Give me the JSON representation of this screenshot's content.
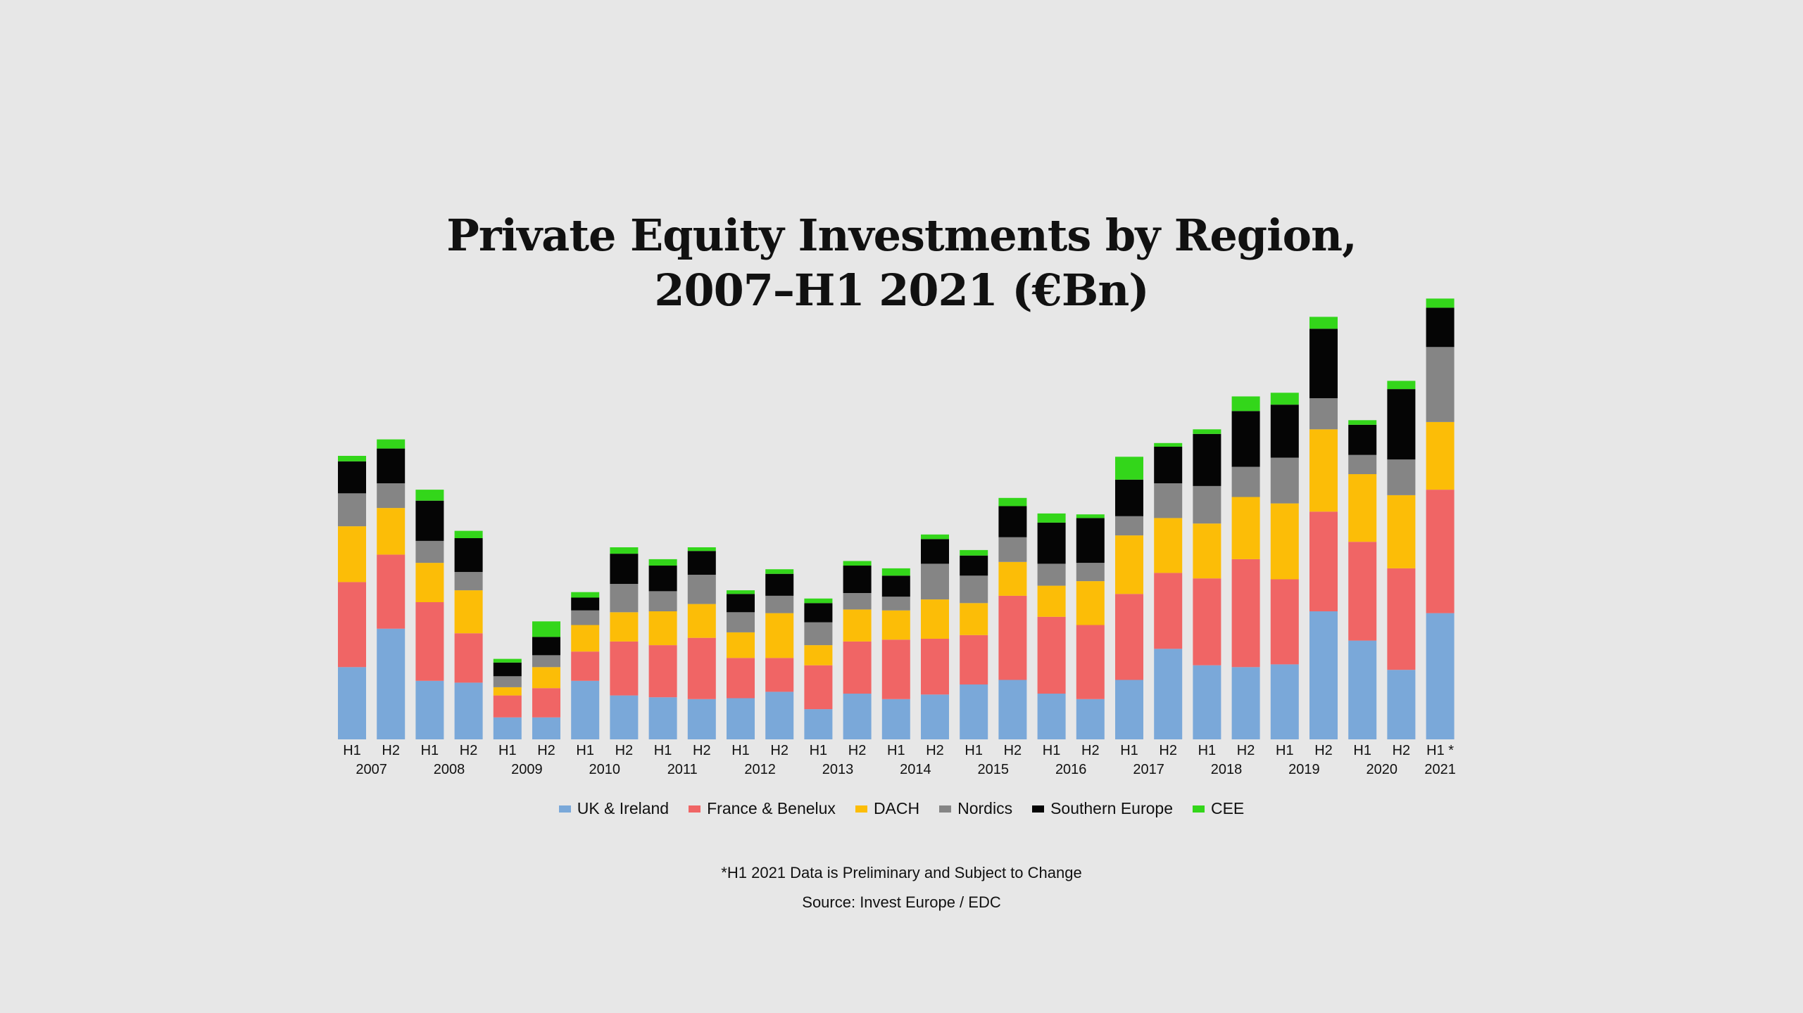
{
  "title_line1": "Private Equity Investments by Region,",
  "title_line2": "2007–H1 2021  (€Bn)",
  "footnote": "*H1 2021 Data is Preliminary and Subject to Change",
  "source": "Source: Invest Europe / EDC",
  "chart_data": {
    "type": "bar",
    "stacked": true,
    "grid": false,
    "legend_position": "bottom",
    "ylim": [
      0,
      48
    ],
    "categories": [
      "H1",
      "H2",
      "H1",
      "H2",
      "H1",
      "H2",
      "H1",
      "H2",
      "H1",
      "H2",
      "H1",
      "H2",
      "H1",
      "H2",
      "H1",
      "H2",
      "H1",
      "H2",
      "H1",
      "H2",
      "H1",
      "H2",
      "H1",
      "H2",
      "H1",
      "H2",
      "H1",
      "H2",
      "H1 *"
    ],
    "years": [
      {
        "label": "2007",
        "from": 0,
        "to": 1
      },
      {
        "label": "2008",
        "from": 2,
        "to": 3
      },
      {
        "label": "2009",
        "from": 4,
        "to": 5
      },
      {
        "label": "2010",
        "from": 6,
        "to": 7
      },
      {
        "label": "2011",
        "from": 8,
        "to": 9
      },
      {
        "label": "2012",
        "from": 10,
        "to": 11
      },
      {
        "label": "2013",
        "from": 12,
        "to": 13
      },
      {
        "label": "2014",
        "from": 14,
        "to": 15
      },
      {
        "label": "2015",
        "from": 16,
        "to": 17
      },
      {
        "label": "2016",
        "from": 18,
        "to": 19
      },
      {
        "label": "2017",
        "from": 20,
        "to": 21
      },
      {
        "label": "2018",
        "from": 22,
        "to": 23
      },
      {
        "label": "2019",
        "from": 24,
        "to": 25
      },
      {
        "label": "2020",
        "from": 26,
        "to": 27
      },
      {
        "label": "2021",
        "from": 28,
        "to": 28
      }
    ],
    "series": [
      {
        "name": "UK & Ireland",
        "color": "#7aa8d9",
        "values": [
          7.9,
          12.1,
          6.4,
          6.2,
          2.4,
          2.4,
          6.4,
          4.8,
          4.6,
          4.4,
          4.5,
          5.2,
          3.3,
          5.0,
          4.4,
          4.9,
          6.0,
          6.5,
          5.0,
          4.4,
          6.5,
          9.9,
          8.1,
          7.9,
          8.2,
          14.0,
          10.8,
          7.6,
          13.8
        ]
      },
      {
        "name": "France & Benelux",
        "color": "#f06565",
        "values": [
          9.3,
          8.1,
          8.6,
          5.4,
          2.4,
          3.2,
          3.2,
          5.9,
          5.7,
          6.7,
          4.4,
          3.7,
          4.8,
          5.7,
          6.5,
          6.1,
          5.4,
          9.2,
          8.4,
          8.1,
          9.4,
          8.3,
          9.5,
          11.8,
          9.3,
          10.9,
          10.8,
          11.1,
          13.5
        ]
      },
      {
        "name": "DACH",
        "color": "#fcbd07",
        "values": [
          6.1,
          5.1,
          4.3,
          4.7,
          0.9,
          2.3,
          2.9,
          3.2,
          3.7,
          3.7,
          2.8,
          4.9,
          2.2,
          3.5,
          3.2,
          4.3,
          3.5,
          3.7,
          3.4,
          4.8,
          6.4,
          6.0,
          6.0,
          6.8,
          8.3,
          9.0,
          7.4,
          8.0,
          7.4
        ]
      },
      {
        "name": "Nordics",
        "color": "#858585",
        "values": [
          3.6,
          2.7,
          2.4,
          2.0,
          1.2,
          1.3,
          1.6,
          3.1,
          2.2,
          3.2,
          2.2,
          1.9,
          2.5,
          1.8,
          1.5,
          3.9,
          3.0,
          2.7,
          2.4,
          2.0,
          2.1,
          3.8,
          4.1,
          3.3,
          5.0,
          3.4,
          2.1,
          3.9,
          8.2
        ]
      },
      {
        "name": "Southern Europe",
        "color": "#050505",
        "values": [
          3.5,
          3.8,
          4.4,
          3.7,
          1.5,
          2.0,
          1.4,
          3.3,
          2.8,
          2.6,
          2.0,
          2.4,
          2.1,
          3.0,
          2.3,
          2.7,
          2.2,
          3.4,
          4.5,
          4.9,
          4.0,
          4.0,
          5.7,
          6.1,
          5.8,
          7.6,
          3.3,
          7.7,
          4.3
        ]
      },
      {
        "name": "CEE",
        "color": "#33d61a",
        "values": [
          0.6,
          1.0,
          1.2,
          0.8,
          0.4,
          1.7,
          0.6,
          0.7,
          0.7,
          0.4,
          0.4,
          0.5,
          0.5,
          0.5,
          0.8,
          0.5,
          0.6,
          0.9,
          1.0,
          0.4,
          2.5,
          0.4,
          0.5,
          1.6,
          1.3,
          1.3,
          0.5,
          0.9,
          1.0
        ]
      }
    ]
  }
}
